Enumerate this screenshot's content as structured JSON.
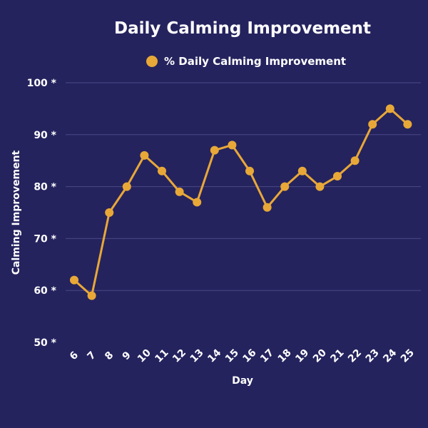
{
  "chart_data": {
    "type": "line",
    "title": "Daily Calming Improvement",
    "xlabel": "Day",
    "ylabel": "Calming Improvement",
    "legend": "top",
    "grid": true,
    "ylim": [
      50,
      100
    ],
    "yticks": [
      "50 *",
      "60 *",
      "70 *",
      "80 *",
      "90 *",
      "100 *"
    ],
    "categories": [
      "6",
      "7",
      "8",
      "9",
      "10",
      "11",
      "12",
      "13",
      "14",
      "15",
      "16",
      "17",
      "18",
      "19",
      "20",
      "21",
      "22",
      "23",
      "24",
      "25"
    ],
    "series": [
      {
        "name": "% Daily Calming Improvement",
        "color": "#e8a838",
        "values": [
          62,
          59,
          75,
          80,
          86,
          83,
          79,
          77,
          87,
          88,
          83,
          76,
          80,
          83,
          80,
          82,
          85,
          92,
          95,
          92
        ]
      }
    ]
  }
}
